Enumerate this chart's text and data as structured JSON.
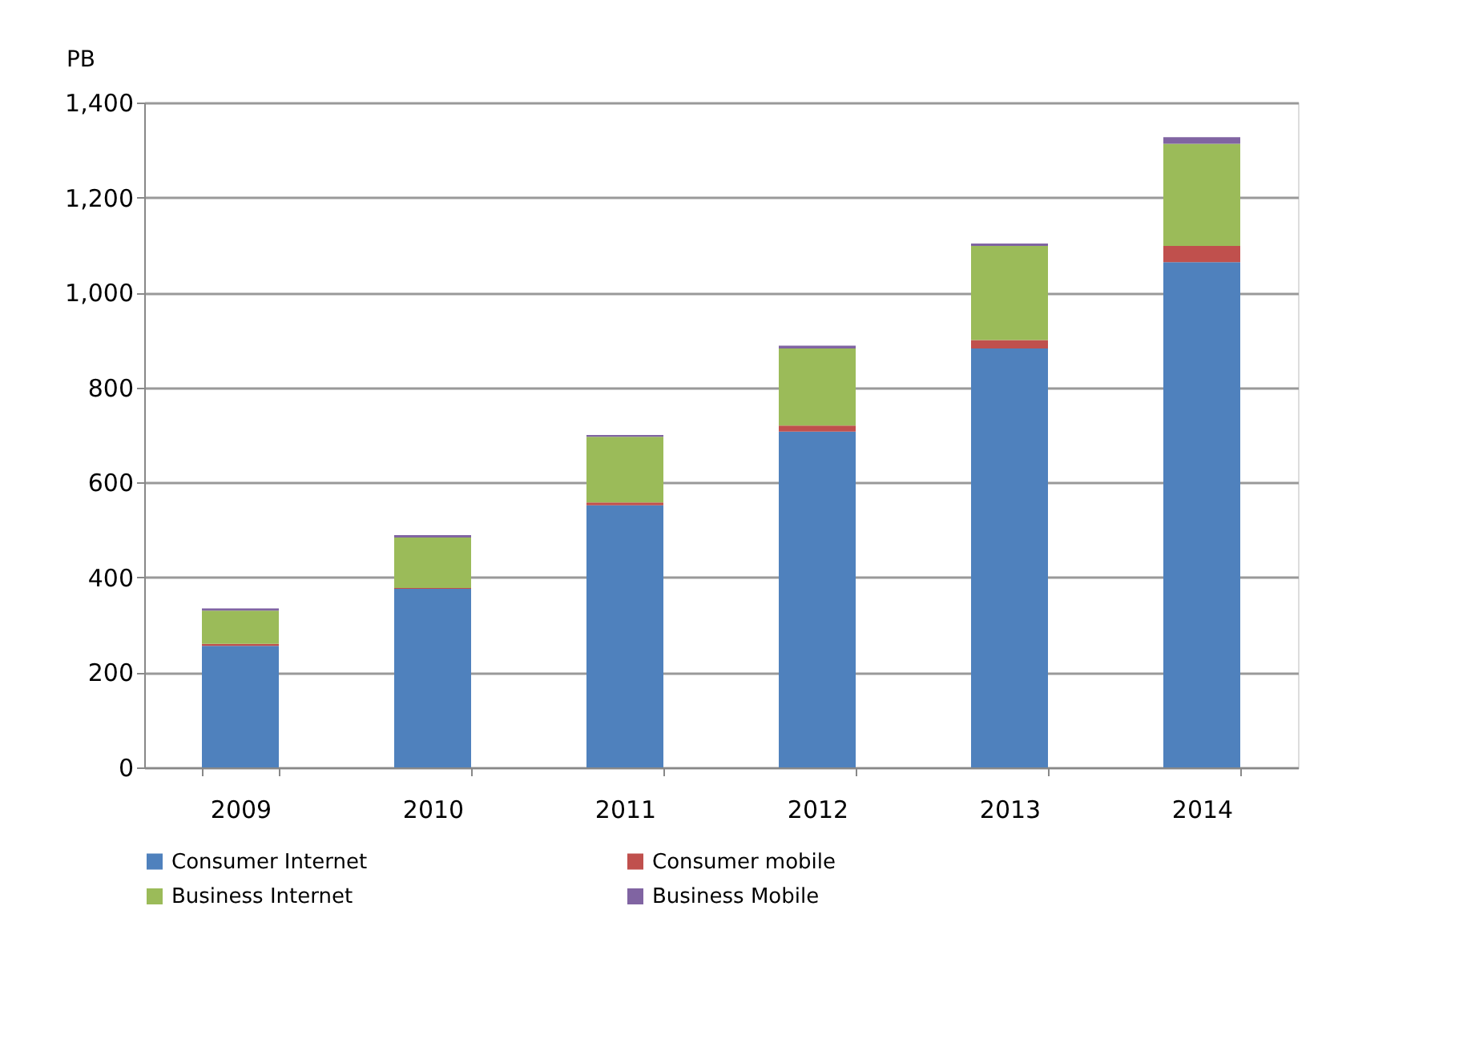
{
  "chart_data": {
    "type": "bar",
    "stacked": true,
    "ylabel": "PB",
    "categories": [
      "2009",
      "2010",
      "2011",
      "2012",
      "2013",
      "2014"
    ],
    "series": [
      {
        "name": "Consumer Internet",
        "color": "#4f81bd",
        "values": [
          256,
          376,
          552,
          707,
          882,
          1064
        ]
      },
      {
        "name": "Consumer mobile",
        "color": "#c0504d",
        "values": [
          4,
          2,
          6,
          13,
          18,
          34
        ]
      },
      {
        "name": "Business Internet",
        "color": "#9bbb59",
        "values": [
          70,
          106,
          138,
          162,
          198,
          215
        ]
      },
      {
        "name": "Business Mobile",
        "color": "#8064a2",
        "values": [
          5,
          5,
          4,
          6,
          5,
          14
        ]
      }
    ],
    "ylim": [
      0,
      1400
    ],
    "yticks": [
      {
        "value": 0,
        "label": "0"
      },
      {
        "value": 200,
        "label": "200"
      },
      {
        "value": 400,
        "label": "400"
      },
      {
        "value": 600,
        "label": "600"
      },
      {
        "value": 800,
        "label": "800"
      },
      {
        "value": 1000,
        "label": "1,000"
      },
      {
        "value": 1200,
        "label": "1,200"
      },
      {
        "value": 1400,
        "label": "1,400"
      }
    ],
    "grid": "y",
    "legend": "bottom"
  }
}
